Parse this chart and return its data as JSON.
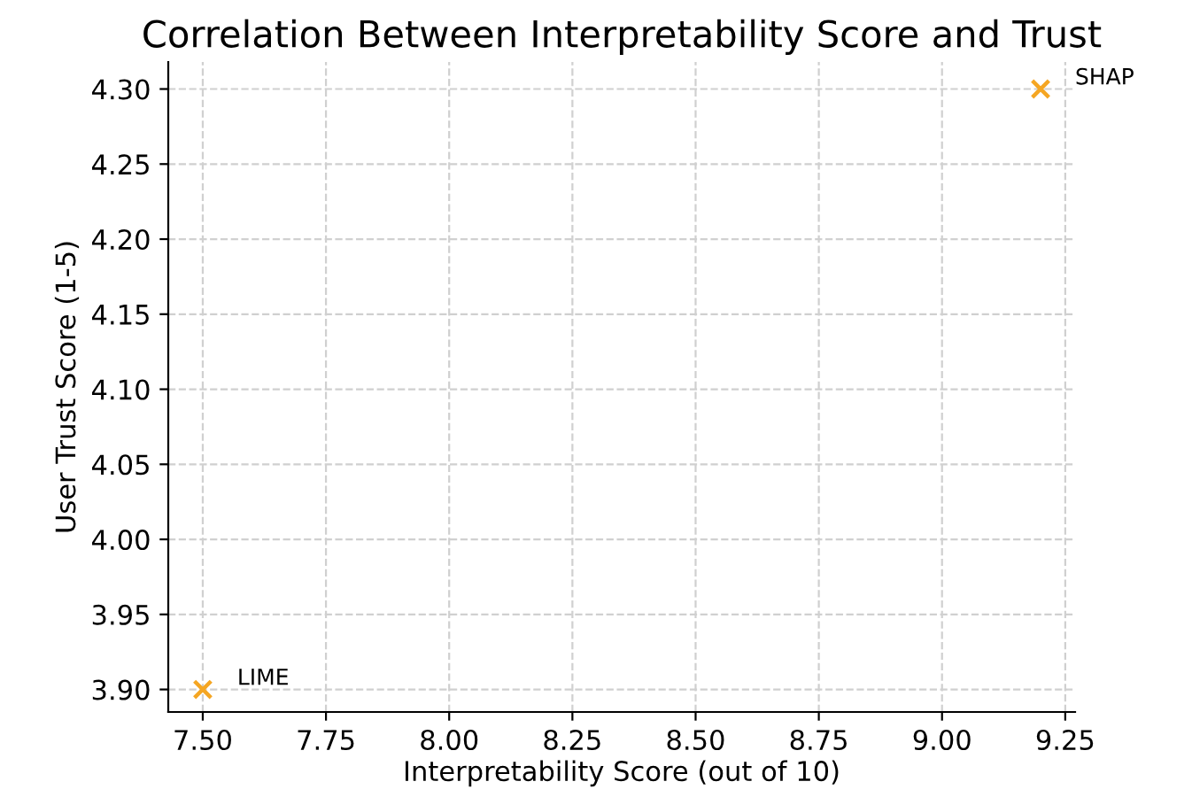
{
  "chart_data": {
    "type": "scatter",
    "title": "Correlation Between Interpretability Score and Trust",
    "xlabel": "Interpretability Score (out of 10)",
    "ylabel": "User Trust Score (1-5)",
    "x": [
      7.5,
      9.2
    ],
    "series": [
      {
        "color": "#f5a623",
        "values": [
          3.9,
          4.3
        ]
      }
    ],
    "annotations": [
      {
        "text": "LIME",
        "x": 7.5,
        "y": 3.9
      },
      {
        "text": "SHAP",
        "x": 9.2,
        "y": 4.3
      }
    ],
    "xlim": [
      7.43,
      9.27
    ],
    "ylim": [
      3.885,
      4.318
    ],
    "xticks": [
      {
        "value": 7.5,
        "label": "7.50"
      },
      {
        "value": 7.75,
        "label": "7.75"
      },
      {
        "value": 8.0,
        "label": "8.00"
      },
      {
        "value": 8.25,
        "label": "8.25"
      },
      {
        "value": 8.5,
        "label": "8.50"
      },
      {
        "value": 8.75,
        "label": "8.75"
      },
      {
        "value": 9.0,
        "label": "9.00"
      },
      {
        "value": 9.25,
        "label": "9.25"
      }
    ],
    "yticks": [
      {
        "value": 3.9,
        "label": "3.90"
      },
      {
        "value": 3.95,
        "label": "3.95"
      },
      {
        "value": 4.0,
        "label": "4.00"
      },
      {
        "value": 4.05,
        "label": "4.05"
      },
      {
        "value": 4.1,
        "label": "4.10"
      },
      {
        "value": 4.15,
        "label": "4.15"
      },
      {
        "value": 4.2,
        "label": "4.20"
      },
      {
        "value": 4.25,
        "label": "4.25"
      },
      {
        "value": 4.3,
        "label": "4.30"
      }
    ],
    "grid": true,
    "marker": "cross",
    "legend": false
  }
}
